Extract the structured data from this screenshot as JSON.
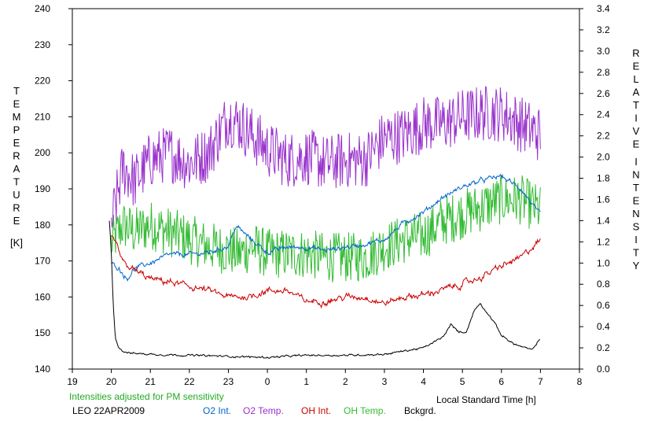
{
  "colors": {
    "o2_int": "#0066cc",
    "o2_temp": "#9933cc",
    "oh_int": "#cc0000",
    "oh_temp": "#33bb33",
    "bckgrd": "#000000",
    "note": "#22aa22"
  },
  "labels": {
    "left_axis": [
      "T",
      "E",
      "M",
      "P",
      "E",
      "R",
      "A",
      "T",
      "U",
      "R",
      "E"
    ],
    "left_unit": "[K]",
    "right_axis": [
      "R",
      "E",
      "L",
      "A",
      "T",
      "I",
      "V",
      "E"
    ],
    "right_axis2": [
      "I",
      "N",
      "T",
      "E",
      "N",
      "S",
      "I",
      "T",
      "Y"
    ],
    "xlabel": "Local Standard Time [h]",
    "note": "Intensities adjusted for PM sensitivity",
    "station": "LEO 22APR2009"
  },
  "legend": [
    "O2 Int.",
    "O2 Temp.",
    "OH Int.",
    "OH Temp.",
    "Bckgrd."
  ],
  "chart_data": {
    "type": "line",
    "x_ticks": [
      "19",
      "20",
      "21",
      "22",
      "23",
      "0",
      "1",
      "2",
      "3",
      "4",
      "5",
      "6",
      "7",
      "8"
    ],
    "xlim": [
      19,
      32
    ],
    "ylim_left": [
      140,
      240
    ],
    "ylim_right": [
      0.0,
      3.4
    ],
    "y_left_ticks": [
      140,
      150,
      160,
      170,
      180,
      190,
      200,
      210,
      220,
      230,
      240
    ],
    "y_right_ticks": [
      "0.0",
      "0.2",
      "0.4",
      "0.6",
      "0.8",
      "1.0",
      "1.2",
      "1.4",
      "1.6",
      "1.8",
      "2.0",
      "2.2",
      "2.4",
      "2.6",
      "2.8",
      "3.0",
      "3.2",
      "3.4"
    ],
    "series": [
      {
        "name": "O2 Temp.",
        "axis": "left",
        "noise": 8,
        "x": [
          20.0,
          20.3,
          20.6,
          21.0,
          21.5,
          22.0,
          22.5,
          23.0,
          23.3,
          23.6,
          24.0,
          24.5,
          25.0,
          25.5,
          26.0,
          26.5,
          27.0,
          27.5,
          28.0,
          28.5,
          29.0,
          29.5,
          30.0,
          30.5,
          31.0
        ],
        "y": [
          180,
          196,
          192,
          198,
          200,
          197,
          200,
          210,
          208,
          205,
          201,
          198,
          199,
          197,
          198,
          198,
          204,
          205,
          208,
          208,
          210,
          211,
          211,
          208,
          205
        ]
      },
      {
        "name": "OH Temp.",
        "axis": "left",
        "noise": 7,
        "x": [
          20.0,
          20.3,
          20.6,
          21.0,
          21.5,
          22.0,
          22.5,
          23.0,
          23.3,
          23.6,
          24.0,
          24.5,
          25.0,
          25.5,
          26.0,
          26.5,
          27.0,
          27.5,
          28.0,
          28.5,
          29.0,
          29.5,
          30.0,
          30.5,
          31.0
        ],
        "y": [
          175,
          180,
          178,
          180,
          178,
          176,
          174,
          173,
          172,
          174,
          172,
          172,
          172,
          171,
          171,
          171,
          174,
          176,
          177,
          181,
          183,
          185,
          187,
          187,
          184
        ]
      },
      {
        "name": "O2 Int.",
        "axis": "right",
        "noise": 0.015,
        "x": [
          20.0,
          20.2,
          20.4,
          20.6,
          21.0,
          21.5,
          22.0,
          22.5,
          23.0,
          23.2,
          23.5,
          24.0,
          24.5,
          25.0,
          25.5,
          26.0,
          26.5,
          27.0,
          27.5,
          28.0,
          28.5,
          29.0,
          29.5,
          30.0,
          30.5,
          31.0
        ],
        "y": [
          1.0,
          0.95,
          0.85,
          0.95,
          1.0,
          1.08,
          1.08,
          1.1,
          1.16,
          1.35,
          1.25,
          1.1,
          1.15,
          1.15,
          1.12,
          1.15,
          1.18,
          1.22,
          1.38,
          1.48,
          1.62,
          1.72,
          1.78,
          1.82,
          1.7,
          1.45
        ]
      },
      {
        "name": "OH Int.",
        "axis": "right",
        "noise": 0.02,
        "x": [
          20.0,
          20.1,
          20.3,
          20.5,
          21.0,
          21.5,
          22.0,
          22.5,
          23.0,
          23.5,
          24.0,
          24.5,
          25.0,
          25.5,
          26.0,
          26.5,
          27.0,
          27.5,
          28.0,
          28.5,
          29.0,
          29.5,
          30.0,
          30.5,
          31.0
        ],
        "y": [
          1.25,
          1.2,
          1.0,
          0.95,
          0.85,
          0.82,
          0.78,
          0.74,
          0.68,
          0.68,
          0.74,
          0.74,
          0.64,
          0.64,
          0.68,
          0.68,
          0.62,
          0.68,
          0.7,
          0.75,
          0.8,
          0.87,
          0.97,
          1.05,
          1.22
        ]
      },
      {
        "name": "Bckgrd.",
        "axis": "right",
        "noise": 0.006,
        "x": [
          19.95,
          20.0,
          20.05,
          20.1,
          20.2,
          20.3,
          20.5,
          21.0,
          22.0,
          23.0,
          24.0,
          25.0,
          26.0,
          27.0,
          27.5,
          28.0,
          28.5,
          28.7,
          28.9,
          29.1,
          29.3,
          29.45,
          29.6,
          29.8,
          30.0,
          30.3,
          30.6,
          30.8,
          31.0
        ],
        "y": [
          1.4,
          1.1,
          0.6,
          0.3,
          0.2,
          0.17,
          0.15,
          0.14,
          0.13,
          0.12,
          0.11,
          0.13,
          0.13,
          0.14,
          0.17,
          0.2,
          0.3,
          0.42,
          0.35,
          0.35,
          0.55,
          0.62,
          0.55,
          0.45,
          0.32,
          0.24,
          0.2,
          0.18,
          0.3
        ]
      }
    ]
  }
}
